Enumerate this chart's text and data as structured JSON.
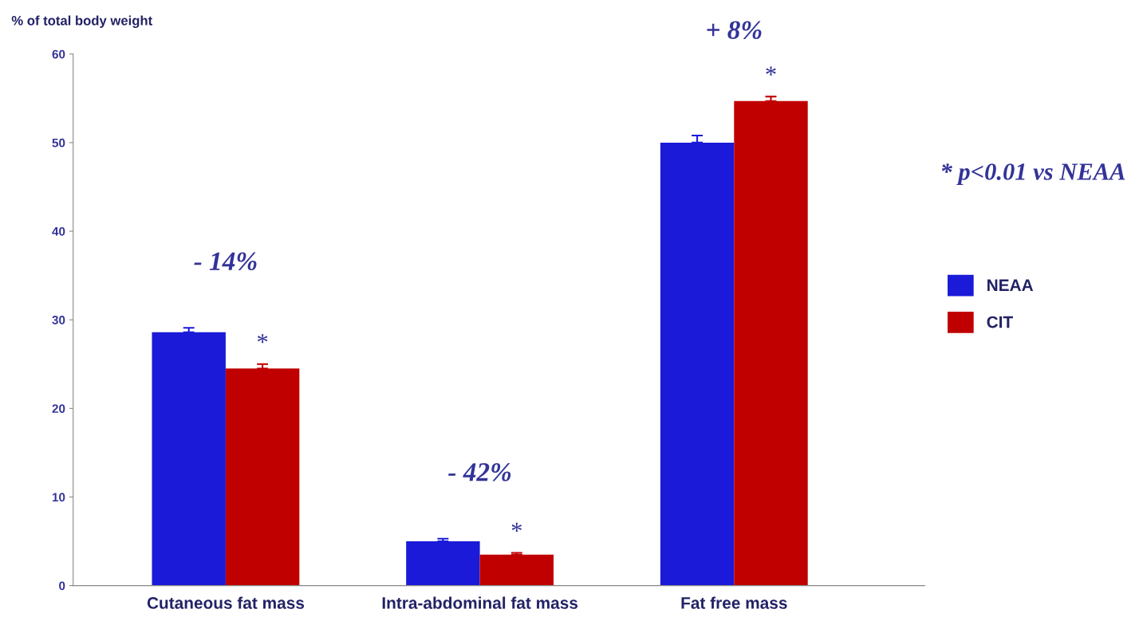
{
  "chart_data": {
    "type": "bar",
    "ylabel": "% of total body weight",
    "categories": [
      "Cutaneous fat mass",
      "Intra-abdominal fat mass",
      "Fat free mass"
    ],
    "series": [
      {
        "name": "NEAA",
        "color": "#1a1ad8",
        "values": [
          28.6,
          5.0,
          50.0
        ],
        "errors": [
          [
            28.6,
            29.1
          ],
          [
            5.0,
            5.3
          ],
          [
            50.0,
            50.8
          ]
        ]
      },
      {
        "name": "CIT",
        "color": "#c00000",
        "values": [
          24.5,
          3.5,
          54.7
        ],
        "errors": [
          [
            24.5,
            25.0
          ],
          [
            3.5,
            3.7
          ],
          [
            54.7,
            55.2
          ]
        ],
        "value_labels": [
          "*",
          "*",
          "*"
        ]
      }
    ],
    "ylim": [
      0,
      60
    ],
    "yticks": [
      0,
      10,
      20,
      30,
      40,
      50,
      60
    ],
    "grid": false,
    "legend": "right",
    "annotations": [
      "- 14%",
      "- 42%",
      "+ 8%",
      "* p<0.01 vs NEAA"
    ]
  }
}
